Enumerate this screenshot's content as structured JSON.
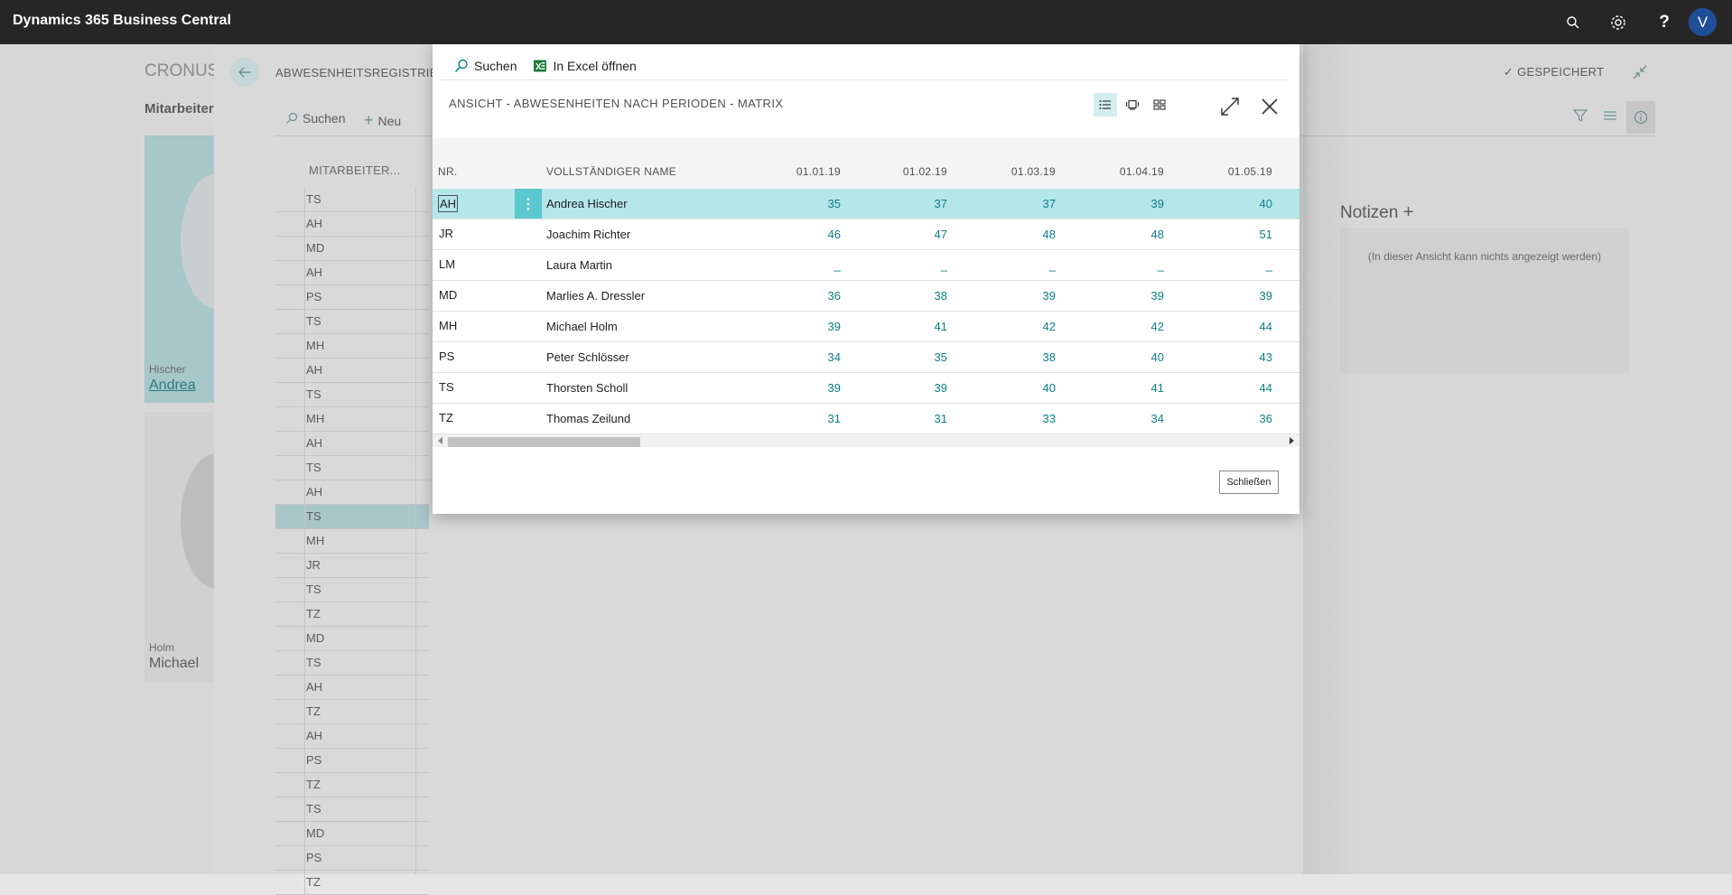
{
  "topbar": {
    "app_title": "Dynamics 365 Business Central",
    "avatar_letter": "V",
    "icons": [
      "search-icon",
      "gear-icon",
      "help-icon"
    ]
  },
  "background_page": {
    "company": "CRONUS",
    "tab": "Mitarbeiter",
    "breadcrumb": "ABWESENHEITSREGISTRIE",
    "saved_label": "GESPEICHERT",
    "actions": {
      "search": "Suchen",
      "new": "Neu"
    },
    "column_header": "MITARBEITER...",
    "list_codes": [
      "TS",
      "AH",
      "MD",
      "AH",
      "PS",
      "TS",
      "MH",
      "AH",
      "TS",
      "MH",
      "AH",
      "TS",
      "AH",
      "TS",
      "MH",
      "JR",
      "TS",
      "TZ",
      "MD",
      "TS",
      "AH",
      "TZ",
      "AH",
      "PS",
      "TZ",
      "TS",
      "MD",
      "PS",
      "TZ"
    ],
    "selected_index": 13,
    "cards": [
      {
        "last_name": "Hischer",
        "first_name": "Andrea"
      },
      {
        "last_name": "Holm",
        "first_name": "Michael"
      }
    ],
    "notes": {
      "title": "Notizen",
      "empty_text": "(In dieser Ansicht kann nichts angezeigt werden)"
    }
  },
  "dialog": {
    "actions": {
      "search": "Suchen",
      "excel": "In Excel öffnen"
    },
    "title": "ANSICHT - ABWESENHEITEN NACH PERIODEN - MATRIX",
    "columns": {
      "nr": "NR.",
      "name": "VOLLSTÄNDIGER NAME",
      "periods": [
        "01.01.19",
        "01.02.19",
        "01.03.19",
        "01.04.19",
        "01.05.19"
      ]
    },
    "rows": [
      {
        "nr": "AH",
        "name": "Andrea Hischer",
        "values": [
          "35",
          "37",
          "37",
          "39",
          "40"
        ]
      },
      {
        "nr": "JR",
        "name": "Joachim Richter",
        "values": [
          "46",
          "47",
          "48",
          "48",
          "51"
        ]
      },
      {
        "nr": "LM",
        "name": "Laura Martin",
        "values": [
          "_",
          "_",
          "_",
          "_",
          "_"
        ]
      },
      {
        "nr": "MD",
        "name": "Marlies A. Dressler",
        "values": [
          "36",
          "38",
          "39",
          "39",
          "39"
        ]
      },
      {
        "nr": "MH",
        "name": "Michael Holm",
        "values": [
          "39",
          "41",
          "42",
          "42",
          "44"
        ]
      },
      {
        "nr": "PS",
        "name": "Peter Schlösser",
        "values": [
          "34",
          "35",
          "38",
          "40",
          "43"
        ]
      },
      {
        "nr": "TS",
        "name": "Thorsten Scholl",
        "values": [
          "39",
          "39",
          "40",
          "41",
          "44"
        ]
      },
      {
        "nr": "TZ",
        "name": "Thomas Zeilund",
        "values": [
          "31",
          "31",
          "33",
          "34",
          "36"
        ]
      }
    ],
    "selected_row": 0,
    "close_label": "Schließen"
  },
  "colors": {
    "accent": "#0d7f86",
    "selected_row": "#b4e6ea",
    "topbar": "#262626",
    "avatar": "#1f4e99"
  }
}
